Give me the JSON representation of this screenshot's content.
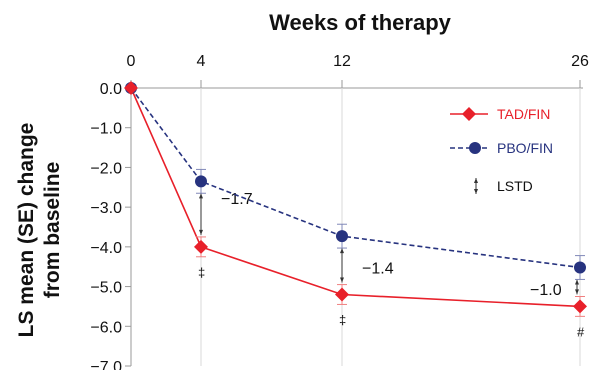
{
  "chart_data": {
    "type": "line",
    "title": "Weeks of therapy",
    "ylabel_line1": "LS mean (SE) change",
    "ylabel_line2": "from baseline",
    "x_ticks": [
      "0",
      "4",
      "12",
      "26"
    ],
    "y_ticks": [
      "0.0",
      "−1.0",
      "−2.0",
      "−3.0",
      "−4.0",
      "−5.0",
      "−6.0",
      "−7.0"
    ],
    "ylim": [
      -7.0,
      0.0
    ],
    "x": [
      0,
      4,
      12,
      26
    ],
    "series": [
      {
        "name": "TAD/FIN",
        "color": "#e8202a",
        "line_style": "solid",
        "marker": "diamond",
        "values": [
          0.0,
          -4.0,
          -5.2,
          -5.5
        ],
        "se": [
          0,
          0.25,
          0.25,
          0.25
        ]
      },
      {
        "name": "PBO/FIN",
        "color": "#27337f",
        "line_style": "dashed",
        "marker": "circle",
        "values": [
          0.0,
          -2.35,
          -3.73,
          -4.52
        ],
        "se": [
          0,
          0.3,
          0.3,
          0.3
        ]
      }
    ],
    "lstd_legend_label": "LSTD",
    "lstd_annotations": [
      {
        "x": 4,
        "label": "−1.7",
        "symbol": "‡"
      },
      {
        "x": 12,
        "label": "−1.4",
        "symbol": "‡"
      },
      {
        "x": 26,
        "label": "−1.0",
        "symbol": "#"
      }
    ],
    "legend_position": "top-right"
  }
}
